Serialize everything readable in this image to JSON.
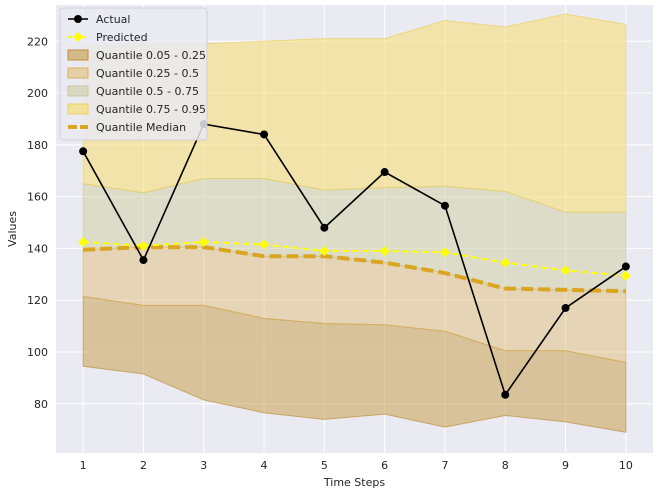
{
  "chart_data": {
    "type": "line",
    "xlabel": "Time Steps",
    "ylabel": "Values",
    "x": [
      1,
      2,
      3,
      4,
      5,
      6,
      7,
      8,
      9,
      10
    ],
    "xlim": [
      0.55,
      10.45
    ],
    "ylim": [
      61,
      234
    ],
    "yticks": [
      80,
      100,
      120,
      140,
      160,
      180,
      200,
      220
    ],
    "grid": true,
    "legend_position": "top-left",
    "colors": {
      "background": "#EAEAF2",
      "grid": "#FFFFFF",
      "actual": "#000000",
      "predicted": "#FFFF00",
      "q05_25": "#C8A050",
      "q25_50": "#E0BC6C",
      "q50_75": "#CFCFA8",
      "q75_95": "#F5DD70",
      "median": "#DAA520"
    },
    "series": [
      {
        "name": "Actual",
        "values": [
          177.5,
          135.5,
          188,
          184,
          148,
          169.5,
          156.5,
          83.5,
          117,
          133
        ]
      },
      {
        "name": "Predicted",
        "values": [
          142.5,
          141,
          142.5,
          141.5,
          139,
          139,
          138.5,
          134.5,
          131.5,
          129.5
        ]
      },
      {
        "name": "Quantile Median",
        "values": [
          139.5,
          140.5,
          140.5,
          137,
          137,
          134.5,
          130.5,
          124.5,
          124,
          123.5
        ]
      }
    ],
    "bands": [
      {
        "name": "Quantile 0.05 - 0.25",
        "lower": [
          94.5,
          91.5,
          81.5,
          76.5,
          74,
          76,
          71,
          75.5,
          73,
          69
        ],
        "upper": [
          121.5,
          118,
          118,
          113,
          111,
          110.5,
          108,
          100.5,
          100.5,
          96
        ]
      },
      {
        "name": "Quantile 0.25 - 0.5",
        "lower": [
          121.5,
          118,
          118,
          113,
          111,
          110.5,
          108,
          100.5,
          100.5,
          96
        ],
        "upper": [
          139.5,
          140.5,
          140.5,
          137,
          137,
          134.5,
          130.5,
          124.5,
          124,
          123.5
        ]
      },
      {
        "name": "Quantile 0.5 - 0.75",
        "lower": [
          139.5,
          140.5,
          140.5,
          137,
          137,
          134.5,
          130.5,
          124.5,
          124,
          123.5
        ],
        "upper": [
          165,
          161.5,
          167,
          167,
          162.5,
          163.5,
          164,
          162,
          154,
          154
        ]
      },
      {
        "name": "Quantile 0.75 - 0.95",
        "lower": [
          165,
          161.5,
          167,
          167,
          162.5,
          163.5,
          164,
          162,
          154,
          154
        ],
        "upper": [
          218,
          219,
          219,
          220,
          221,
          221,
          228,
          225.5,
          230.5,
          226.5
        ]
      }
    ],
    "legend": [
      "Actual",
      "Predicted",
      "Quantile 0.05 - 0.25",
      "Quantile 0.25 - 0.5",
      "Quantile 0.5 - 0.75",
      "Quantile 0.75 - 0.95",
      "Quantile Median"
    ]
  }
}
